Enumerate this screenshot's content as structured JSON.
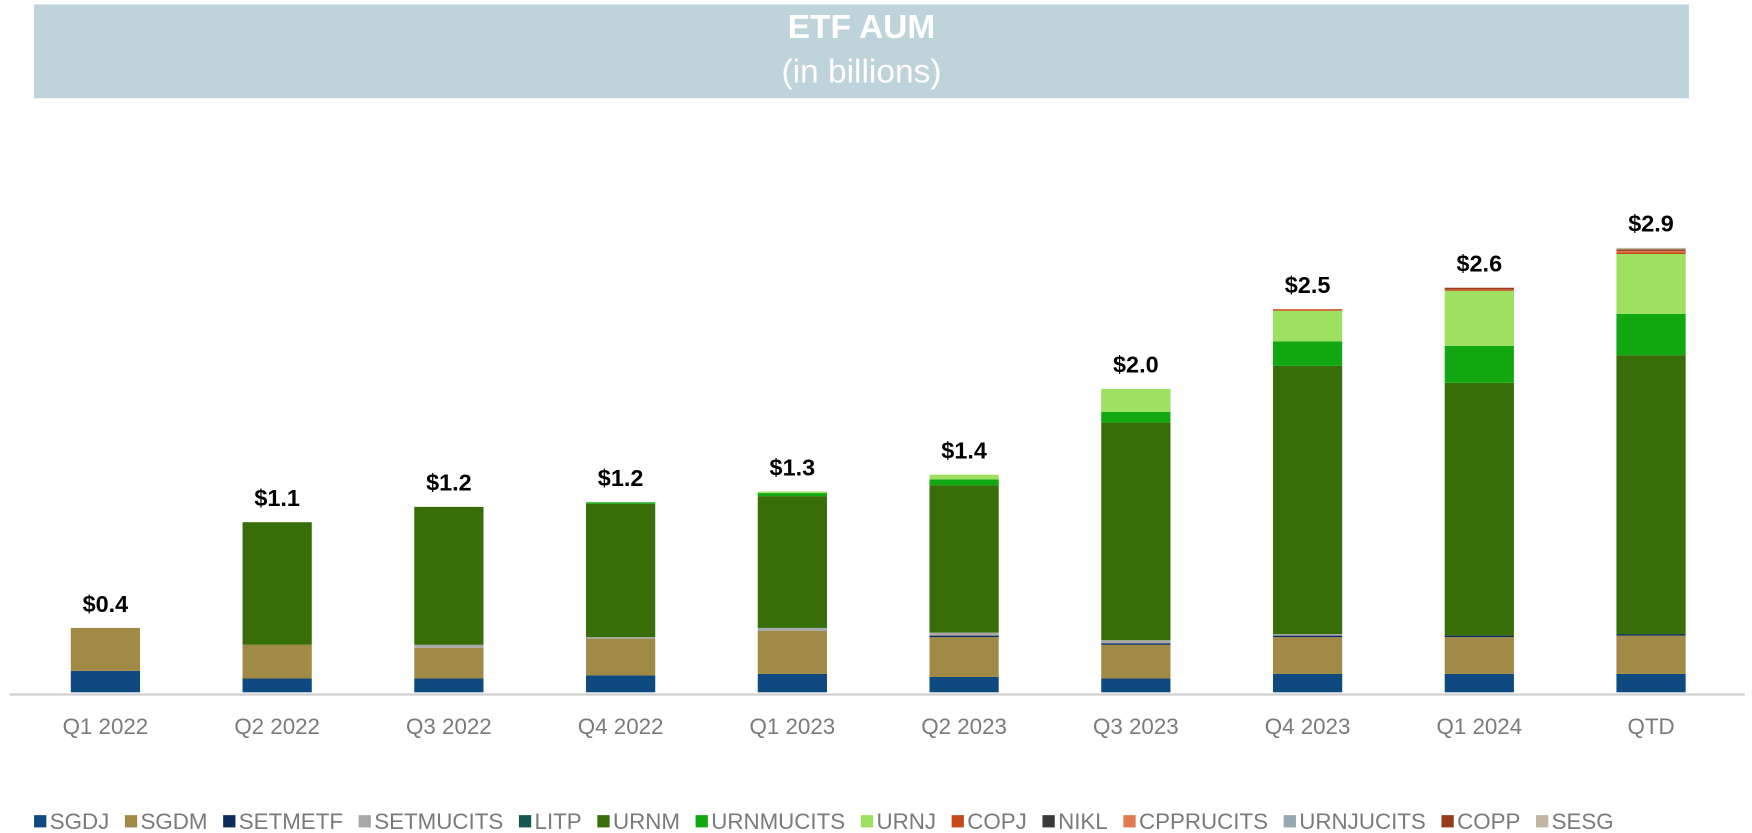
{
  "chart_data": {
    "type": "stacked_bar",
    "title": "ETF AUM",
    "subtitle": "(in billions)",
    "categories": [
      "Q1 2022",
      "Q2 2022",
      "Q3 2022",
      "Q4 2022",
      "Q1 2023",
      "Q2 2023",
      "Q3 2023",
      "Q4 2023",
      "Q1 2024",
      "QTD"
    ],
    "totals": [
      0.4,
      1.1,
      1.2,
      1.2,
      1.3,
      1.4,
      2.0,
      2.5,
      2.6,
      2.9
    ],
    "total_labels": [
      "$0.4",
      "$1.1",
      "$1.2",
      "$1.2",
      "$1.3",
      "$1.4",
      "$2.0",
      "$2.5",
      "$2.6",
      "$2.9"
    ],
    "series": [
      {
        "name": "SGDJ",
        "color": "#0e4a80",
        "values": [
          0.14,
          0.09,
          0.09,
          0.11,
          0.12,
          0.1,
          0.09,
          0.12,
          0.12,
          0.12
        ]
      },
      {
        "name": "SGDM",
        "color": "#a08a45",
        "values": [
          0.28,
          0.22,
          0.2,
          0.24,
          0.28,
          0.26,
          0.22,
          0.24,
          0.24,
          0.25
        ]
      },
      {
        "name": "SETMETF",
        "color": "#0c2a5a",
        "values": [
          0,
          0,
          0,
          0,
          0,
          0.01,
          0.01,
          0.01,
          0.01,
          0.01
        ]
      },
      {
        "name": "SETMUCITS",
        "color": "#a8a8a8",
        "values": [
          0,
          0,
          0.02,
          0.01,
          0.02,
          0.02,
          0.02,
          0.01,
          0,
          0
        ]
      },
      {
        "name": "LITP",
        "color": "#16584f",
        "values": [
          0,
          0,
          0,
          0,
          0,
          0,
          0,
          0,
          0,
          0
        ]
      },
      {
        "name": "URNM",
        "color": "#386e08",
        "values": [
          0,
          0.8,
          0.9,
          0.87,
          0.86,
          0.96,
          1.42,
          1.75,
          1.65,
          1.82
        ]
      },
      {
        "name": "URNMUCITS",
        "color": "#12a812",
        "values": [
          0,
          0,
          0,
          0.01,
          0.02,
          0.04,
          0.07,
          0.16,
          0.24,
          0.27
        ]
      },
      {
        "name": "URNJ",
        "color": "#9ee060",
        "values": [
          0,
          0,
          0,
          0,
          0.01,
          0.03,
          0.15,
          0.2,
          0.36,
          0.39
        ]
      },
      {
        "name": "COPJ",
        "color": "#c84a1c",
        "values": [
          0,
          0,
          0,
          0,
          0,
          0,
          0,
          0.01,
          0.01,
          0.01
        ]
      },
      {
        "name": "NIKL",
        "color": "#3a3a3a",
        "values": [
          0,
          0,
          0,
          0,
          0,
          0,
          0,
          0,
          0,
          0
        ]
      },
      {
        "name": "CPPRUCITS",
        "color": "#e07a50",
        "values": [
          0,
          0,
          0,
          0,
          0,
          0,
          0,
          0,
          0,
          0.01
        ]
      },
      {
        "name": "URNJUCITS",
        "color": "#96a8b0",
        "values": [
          0,
          0,
          0,
          0,
          0,
          0,
          0,
          0,
          0,
          0
        ]
      },
      {
        "name": "COPP",
        "color": "#963c1c",
        "values": [
          0,
          0,
          0,
          0,
          0,
          0,
          0,
          0,
          0.01,
          0.01
        ]
      },
      {
        "name": "SESG",
        "color": "#bfb6a4",
        "values": [
          0,
          0,
          0,
          0,
          0,
          0,
          0,
          0,
          0,
          0.01
        ]
      }
    ]
  }
}
